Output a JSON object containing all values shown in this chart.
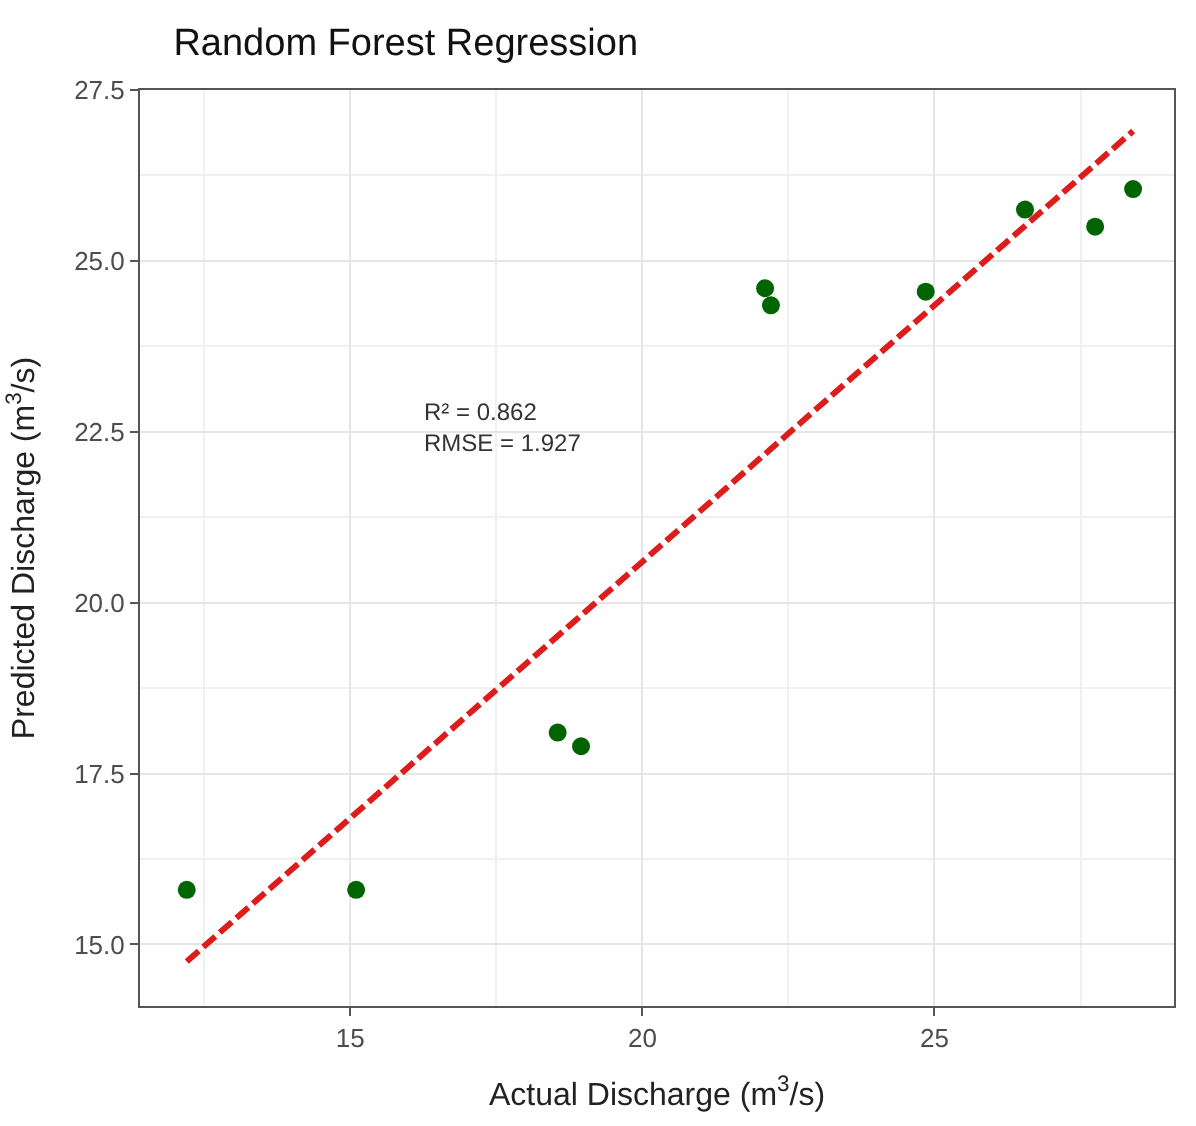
{
  "chart_data": {
    "type": "scatter",
    "title": "Random Forest Regression",
    "xlabel": "Actual Discharge (m$^{3}$/s)",
    "ylabel": "Predicted Discharge (m$^{3}$/s)",
    "x": [
      12.2,
      15.1,
      18.55,
      18.95,
      22.1,
      22.2,
      24.85,
      26.55,
      27.75,
      28.4
    ],
    "series": [
      {
        "color": "#006400",
        "values": [
          15.8,
          15.8,
          18.1,
          17.9,
          24.6,
          24.35,
          24.55,
          25.75,
          25.5,
          26.05
        ],
        "marker": "circle"
      },
      {
        "type": "line",
        "color": "#dd1c1c",
        "x": [
          12.2,
          28.4
        ],
        "values": [
          14.75,
          26.9
        ],
        "line_style": "dashed"
      }
    ],
    "annotations": [
      "R² = 0.862\nRMSE = 1.927"
    ],
    "xlim": [
      11.4,
      29.1
    ],
    "ylim": [
      14.1,
      27.5
    ],
    "xticks": [
      15,
      20,
      25
    ],
    "yticks": [
      {
        "value": 15,
        "label": "15.0"
      },
      {
        "value": 17.5,
        "label": "17.5"
      },
      {
        "value": 20,
        "label": "20.0"
      },
      {
        "value": 22.5,
        "label": "22.5"
      },
      {
        "value": 25,
        "label": "25.0"
      },
      {
        "value": 27.5,
        "label": "27.5"
      }
    ],
    "grid": true,
    "legend": false
  }
}
